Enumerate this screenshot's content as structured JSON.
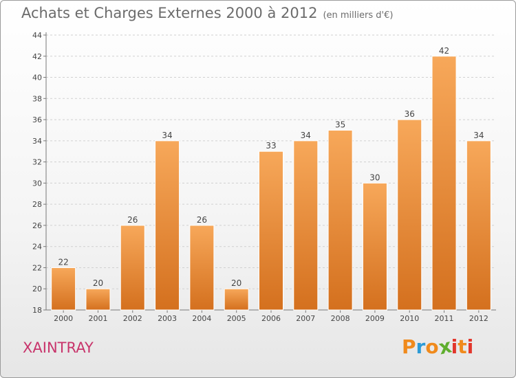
{
  "header": {
    "title": "Achats et Charges Externes 2000 à 2012",
    "unit": "(en milliers d'€)"
  },
  "footer": {
    "city": "XAINTRAY",
    "logo": "Proxiti"
  },
  "colors": {
    "bar_light": "#f7a85a",
    "bar_dark": "#d4701e",
    "city": "#c8346b",
    "logo": [
      "#f08a1c",
      "#2c9ad6",
      "#f08a1c",
      "#5fae2e",
      "#e2362c",
      "#f08a1c",
      "#e2362c"
    ]
  },
  "chart_data": {
    "type": "bar",
    "title": "Achats et Charges Externes 2000 à 2012",
    "subtitle": "(en milliers d'€)",
    "categories": [
      "2000",
      "2001",
      "2002",
      "2003",
      "2004",
      "2005",
      "2006",
      "2007",
      "2008",
      "2009",
      "2010",
      "2011",
      "2012"
    ],
    "values": [
      22,
      20,
      26,
      34,
      26,
      20,
      33,
      34,
      35,
      30,
      36,
      42,
      34
    ],
    "ylim": [
      18,
      44
    ],
    "yticks": [
      18,
      20,
      22,
      24,
      26,
      28,
      30,
      32,
      34,
      36,
      38,
      40,
      42,
      44
    ],
    "grid": true,
    "data_labels": true
  }
}
